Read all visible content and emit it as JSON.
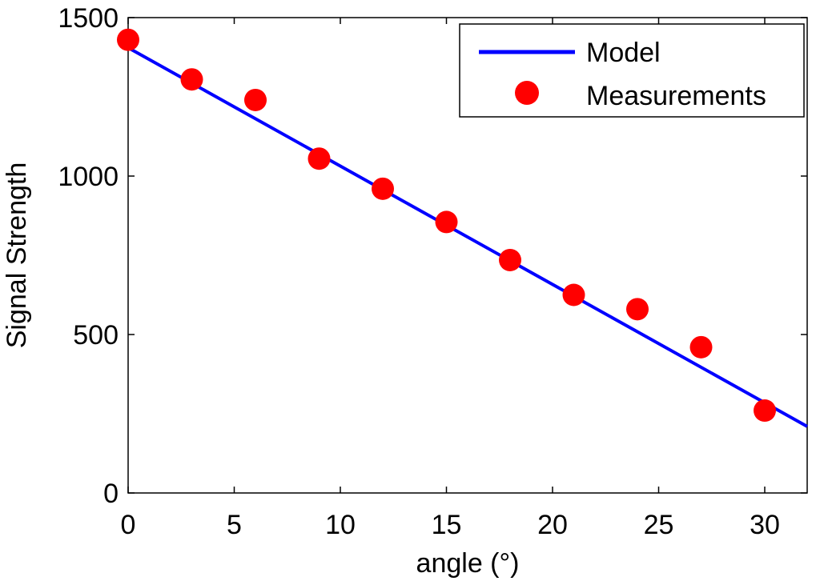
{
  "chart_data": {
    "type": "line",
    "title": "",
    "xlabel": "angle (°)",
    "ylabel": "Signal Strength",
    "xlim": [
      0,
      32
    ],
    "ylim": [
      0,
      1500
    ],
    "xticks": [
      0,
      5,
      10,
      15,
      20,
      25,
      30
    ],
    "xtick_labels": [
      "0",
      "5",
      "10",
      "15",
      "20",
      "25",
      "30"
    ],
    "yticks": [
      0,
      500,
      1000,
      1500
    ],
    "ytick_labels": [
      "0",
      "500",
      "1000",
      "1500"
    ],
    "grid": false,
    "legend_position": "top-right",
    "series": [
      {
        "name": "Model",
        "kind": "line",
        "color": "#0000ff",
        "x": [
          0,
          32
        ],
        "y": [
          1405,
          210
        ]
      },
      {
        "name": "Measurements",
        "kind": "scatter",
        "color": "#ff0000",
        "x": [
          0,
          3,
          6,
          9,
          12,
          15,
          18,
          21,
          24,
          27,
          30
        ],
        "y": [
          1430,
          1305,
          1240,
          1055,
          960,
          855,
          735,
          625,
          580,
          460,
          260
        ]
      }
    ]
  }
}
